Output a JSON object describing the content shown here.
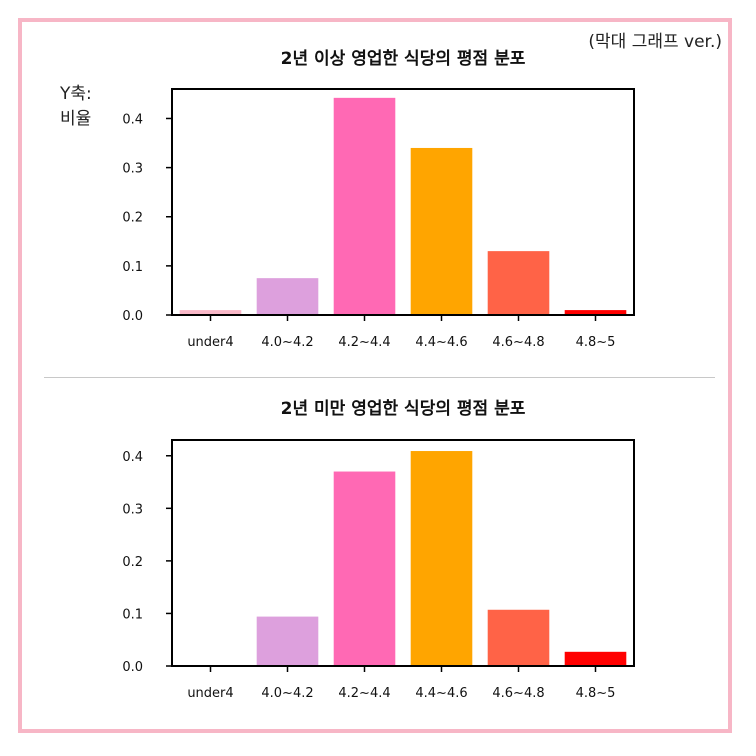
{
  "version_note": "(막대 그래프 ver.)",
  "ylabel": {
    "line1": "Y축:",
    "line2": "비율"
  },
  "colors": [
    "#f9b8c8",
    "#dda0dd",
    "#ff69b4",
    "#ffa500",
    "#ff6347",
    "#ff0000"
  ],
  "chart_data": [
    {
      "type": "bar",
      "title": "2년 이상 영업한 식당의 평점 분포",
      "categories": [
        "under4",
        "4.0~4.2",
        "4.2~4.4",
        "4.4~4.6",
        "4.6~4.8",
        "4.8~5"
      ],
      "values": [
        0.01,
        0.075,
        0.442,
        0.34,
        0.13,
        0.01
      ],
      "ylim": [
        0,
        0.46
      ],
      "yticks": [
        "0.0",
        "0.1",
        "0.2",
        "0.3",
        "0.4"
      ]
    },
    {
      "type": "bar",
      "title": "2년 미만 영업한 식당의 평점 분포",
      "categories": [
        "under4",
        "4.0~4.2",
        "4.2~4.4",
        "4.4~4.6",
        "4.6~4.8",
        "4.8~5"
      ],
      "values": [
        0.0,
        0.094,
        0.37,
        0.409,
        0.107,
        0.027
      ],
      "ylim": [
        0,
        0.43
      ],
      "yticks": [
        "0.0",
        "0.1",
        "0.2",
        "0.3",
        "0.4"
      ]
    }
  ]
}
